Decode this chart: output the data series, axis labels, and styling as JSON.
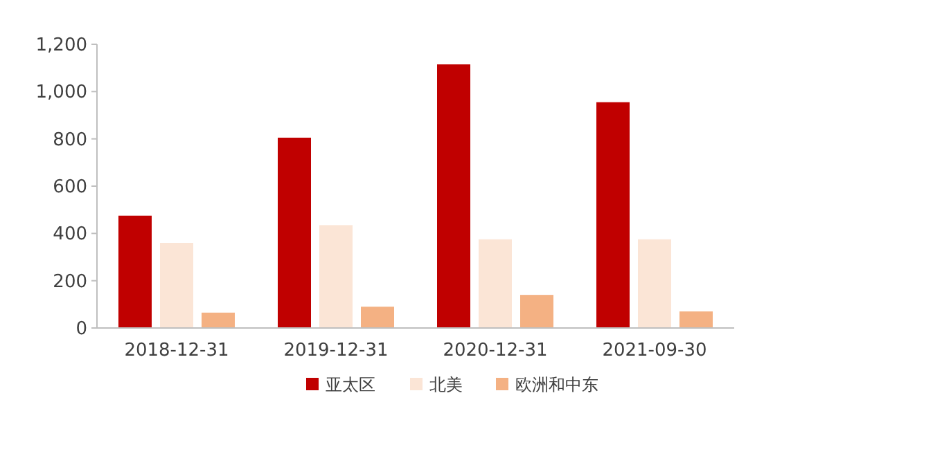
{
  "chart_data": {
    "type": "bar",
    "categories": [
      "2018-12-31",
      "2019-12-31",
      "2020-12-31",
      "2021-09-30"
    ],
    "series": [
      {
        "name": "亚太区",
        "color": "#c00000",
        "values": [
          475,
          805,
          1115,
          955
        ]
      },
      {
        "name": "北美",
        "color": "#fbe5d6",
        "values": [
          360,
          435,
          375,
          375
        ]
      },
      {
        "name": "欧洲和中东",
        "color": "#f4b183",
        "values": [
          65,
          90,
          140,
          70
        ]
      }
    ],
    "ylim": [
      0,
      1200
    ],
    "yticks": [
      0,
      200,
      400,
      600,
      800,
      {
        "value": 1000,
        "label": "1,000"
      },
      {
        "value": 1200,
        "label": "1,200"
      }
    ],
    "grid": false,
    "legend": "bottom"
  }
}
